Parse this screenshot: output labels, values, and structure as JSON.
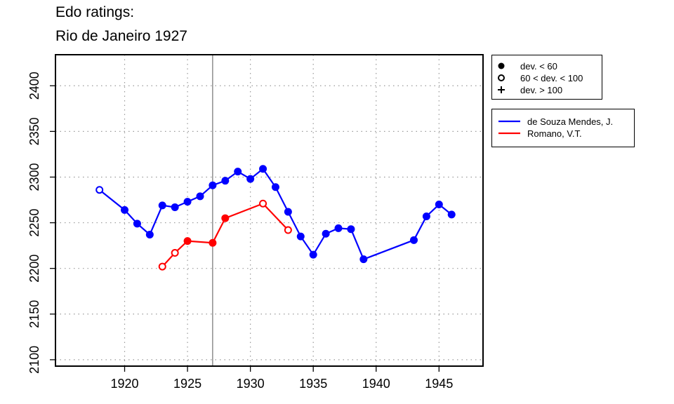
{
  "title_lines": [
    "Edo ratings:",
    "Rio de Janeiro 1927"
  ],
  "chart_data": {
    "type": "line",
    "xlabel": "",
    "ylabel": "",
    "xlim": [
      1914.5,
      1948.5
    ],
    "ylim": [
      2093,
      2434
    ],
    "xticks": [
      1920,
      1925,
      1930,
      1935,
      1940,
      1945
    ],
    "yticks": [
      2100,
      2150,
      2200,
      2250,
      2300,
      2350,
      2400
    ],
    "grid": true,
    "event_year": 1927,
    "symbol_legend": [
      {
        "label": "dev. < 60",
        "symbol": "filled-circle"
      },
      {
        "label": "60 < dev. < 100",
        "symbol": "open-circle"
      },
      {
        "label": "dev. > 100",
        "symbol": "plus"
      }
    ],
    "series": [
      {
        "name": "de Souza Mendes, J.",
        "color": "#0000ff",
        "points": [
          {
            "x": 1918,
            "y": 2286,
            "dev": "mid"
          },
          {
            "x": 1920,
            "y": 2264,
            "dev": "low"
          },
          {
            "x": 1921,
            "y": 2249,
            "dev": "low"
          },
          {
            "x": 1922,
            "y": 2237,
            "dev": "low"
          },
          {
            "x": 1923,
            "y": 2269,
            "dev": "low"
          },
          {
            "x": 1924,
            "y": 2267,
            "dev": "low"
          },
          {
            "x": 1925,
            "y": 2273,
            "dev": "low"
          },
          {
            "x": 1926,
            "y": 2279,
            "dev": "low"
          },
          {
            "x": 1927,
            "y": 2291,
            "dev": "low"
          },
          {
            "x": 1928,
            "y": 2296,
            "dev": "low"
          },
          {
            "x": 1929,
            "y": 2306,
            "dev": "low"
          },
          {
            "x": 1930,
            "y": 2298,
            "dev": "low"
          },
          {
            "x": 1931,
            "y": 2309,
            "dev": "low"
          },
          {
            "x": 1932,
            "y": 2289,
            "dev": "low"
          },
          {
            "x": 1933,
            "y": 2262,
            "dev": "low"
          },
          {
            "x": 1934,
            "y": 2235,
            "dev": "low"
          },
          {
            "x": 1935,
            "y": 2215,
            "dev": "low"
          },
          {
            "x": 1936,
            "y": 2238,
            "dev": "low"
          },
          {
            "x": 1937,
            "y": 2244,
            "dev": "low"
          },
          {
            "x": 1938,
            "y": 2243,
            "dev": "low"
          },
          {
            "x": 1939,
            "y": 2210,
            "dev": "low"
          },
          {
            "x": 1943,
            "y": 2231,
            "dev": "low"
          },
          {
            "x": 1944,
            "y": 2257,
            "dev": "low"
          },
          {
            "x": 1945,
            "y": 2270,
            "dev": "low"
          },
          {
            "x": 1946,
            "y": 2259,
            "dev": "low"
          }
        ]
      },
      {
        "name": "Romano, V.T.",
        "color": "#ff0000",
        "points": [
          {
            "x": 1923,
            "y": 2202,
            "dev": "mid"
          },
          {
            "x": 1924,
            "y": 2217,
            "dev": "mid"
          },
          {
            "x": 1925,
            "y": 2230,
            "dev": "low"
          },
          {
            "x": 1927,
            "y": 2228,
            "dev": "low"
          },
          {
            "x": 1928,
            "y": 2255,
            "dev": "low"
          },
          {
            "x": 1931,
            "y": 2271,
            "dev": "mid"
          },
          {
            "x": 1933,
            "y": 2242,
            "dev": "mid"
          }
        ]
      }
    ]
  }
}
